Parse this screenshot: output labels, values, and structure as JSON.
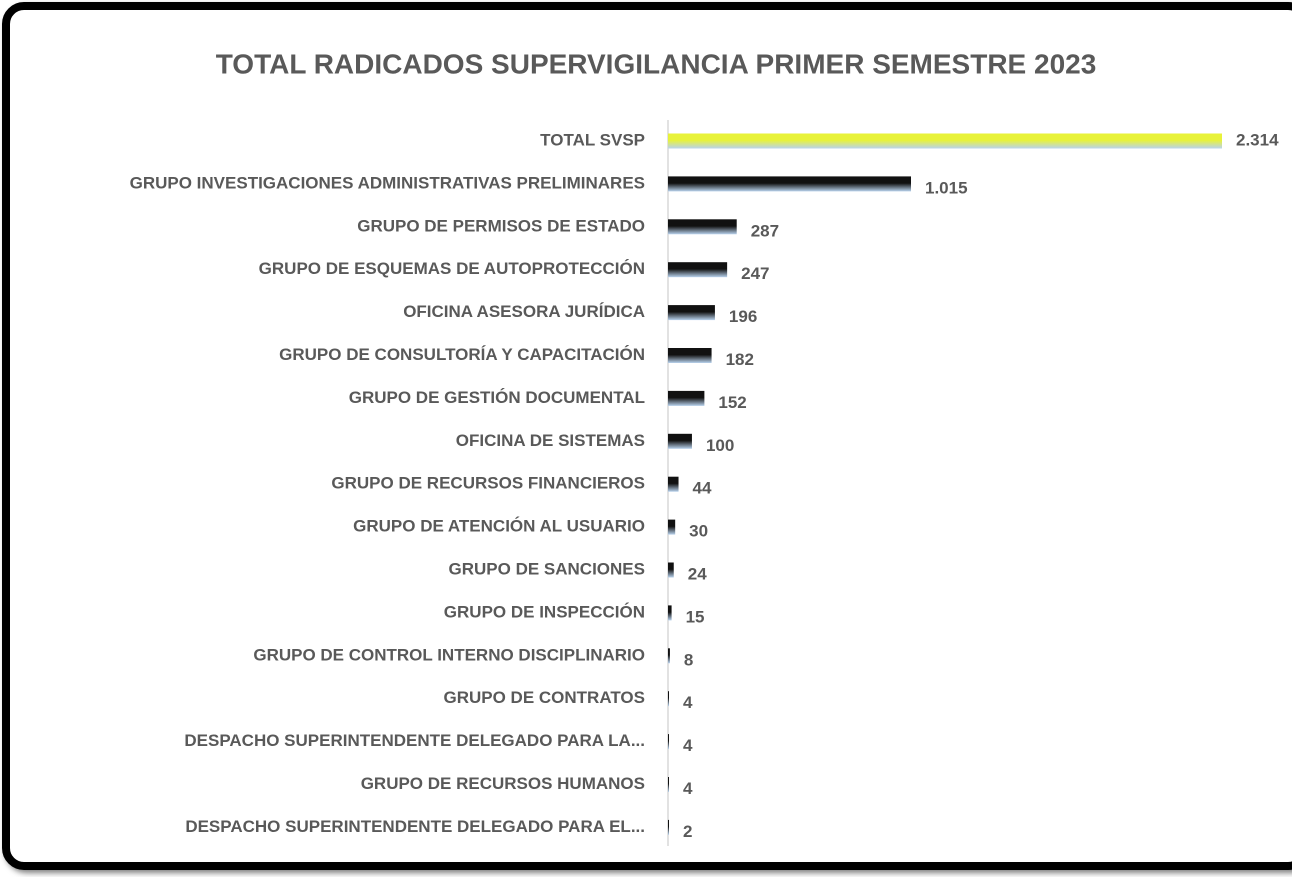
{
  "chart_data": {
    "type": "bar",
    "orientation": "horizontal",
    "title": "TOTAL RADICADOS SUPERVIGILANCIA PRIMER SEMESTRE 2023",
    "categories": [
      "TOTAL SVSP",
      "GRUPO INVESTIGACIONES ADMINISTRATIVAS PRELIMINARES",
      "GRUPO DE PERMISOS DE ESTADO",
      "GRUPO DE ESQUEMAS DE AUTOPROTECCIÓN",
      "OFICINA ASESORA JURÍDICA",
      "GRUPO DE CONSULTORÍA Y CAPACITACIÓN",
      "GRUPO DE GESTIÓN DOCUMENTAL",
      "OFICINA DE SISTEMAS",
      "GRUPO DE RECURSOS FINANCIEROS",
      "GRUPO DE ATENCIÓN AL USUARIO",
      "GRUPO DE SANCIONES",
      "GRUPO DE INSPECCIÓN",
      "GRUPO DE CONTROL INTERNO DISCIPLINARIO",
      "GRUPO DE CONTRATOS",
      "DESPACHO SUPERINTENDENTE DELEGADO PARA LA...",
      "GRUPO DE RECURSOS HUMANOS",
      "DESPACHO SUPERINTENDENTE DELEGADO PARA EL..."
    ],
    "values": [
      2314,
      1015,
      287,
      247,
      196,
      182,
      152,
      100,
      44,
      30,
      24,
      15,
      8,
      4,
      4,
      4,
      2
    ],
    "value_labels": [
      "2.314",
      "1.015",
      "287",
      "247",
      "196",
      "182",
      "152",
      "100",
      "44",
      "30",
      "24",
      "15",
      "8",
      "4",
      "4",
      "4",
      "2"
    ],
    "colors": [
      "#e8f23a",
      "#111111",
      "#111111",
      "#111111",
      "#111111",
      "#111111",
      "#111111",
      "#111111",
      "#111111",
      "#111111",
      "#111111",
      "#111111",
      "#111111",
      "#111111",
      "#111111",
      "#111111",
      "#111111"
    ],
    "gradient_end": "#b9d3ee"
  }
}
